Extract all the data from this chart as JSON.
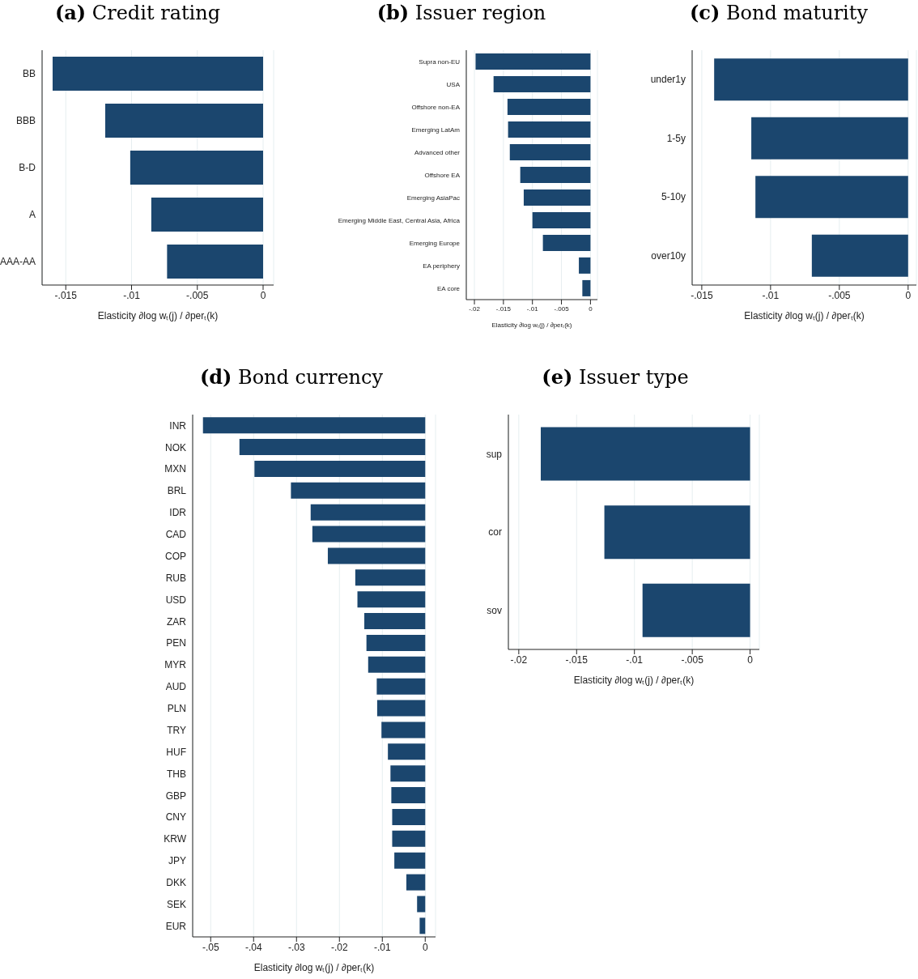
{
  "chart_data": [
    {
      "type": "bar",
      "orientation": "horizontal",
      "title": "(a) Credit rating",
      "xlabel": "Elasticity ∂log wₜ(j) / ∂perₜ(k)",
      "categories": [
        "BB",
        "BBB",
        "B-D",
        "A",
        "AAA-AA"
      ],
      "values": [
        -0.016,
        -0.012,
        -0.0101,
        -0.0085,
        -0.0073
      ],
      "color": "#1b466e",
      "xlim": [
        -0.0168,
        0.0008
      ],
      "xticks": [
        {
          "value": -0.015,
          "label": "-.015"
        },
        {
          "value": -0.01,
          "label": "-.01"
        },
        {
          "value": -0.005,
          "label": "-.005"
        },
        {
          "value": 0,
          "label": "0"
        }
      ],
      "grid": "x"
    },
    {
      "type": "bar",
      "orientation": "horizontal",
      "title": "(b) Issuer region",
      "xlabel": "Elasticity ∂log wₜ(j) / ∂perₜ(k)",
      "categories": [
        "Supra non-EU",
        "USA",
        "Offshore non-EA",
        "Emerging LatAm",
        "Advanced other",
        "Offshore EA",
        "Emerging AsiaPac",
        "Emerging Middle East, Central Asia, Africa",
        "Emerging Europe",
        "EA periphery",
        "EA core"
      ],
      "values": [
        -0.0198,
        -0.0167,
        -0.0143,
        -0.0142,
        -0.0139,
        -0.0121,
        -0.0115,
        -0.01,
        -0.0082,
        -0.002,
        -0.0014
      ],
      "color": "#1b466e",
      "xlim": [
        -0.0214,
        0.0012
      ],
      "xticks": [
        {
          "value": -0.02,
          "label": "-.02"
        },
        {
          "value": -0.015,
          "label": "-.015"
        },
        {
          "value": -0.01,
          "label": "-.01"
        },
        {
          "value": -0.005,
          "label": "-.005"
        },
        {
          "value": 0,
          "label": "0"
        }
      ],
      "grid": "x"
    },
    {
      "type": "bar",
      "orientation": "horizontal",
      "title": "(c) Bond maturity",
      "xlabel": "Elasticity ∂log wₜ(j) / ∂perₜ(k)",
      "categories": [
        "under1y",
        "1-5y",
        "5-10y",
        "over10y"
      ],
      "values": [
        -0.0141,
        -0.0114,
        -0.0111,
        -0.007
      ],
      "color": "#1b466e",
      "xlim": [
        -0.0157,
        0.0006
      ],
      "xticks": [
        {
          "value": -0.015,
          "label": "-.015"
        },
        {
          "value": -0.01,
          "label": "-.01"
        },
        {
          "value": -0.005,
          "label": "-.005"
        },
        {
          "value": 0,
          "label": "0"
        }
      ],
      "grid": "x"
    },
    {
      "type": "bar",
      "orientation": "horizontal",
      "title": "(d) Bond currency",
      "xlabel": "Elasticity ∂log wₜ(j) / ∂perₜ(k)",
      "categories": [
        "INR",
        "NOK",
        "MXN",
        "BRL",
        "IDR",
        "CAD",
        "COP",
        "RUB",
        "USD",
        "ZAR",
        "PEN",
        "MYR",
        "AUD",
        "PLN",
        "TRY",
        "HUF",
        "THB",
        "GBP",
        "CNY",
        "KRW",
        "JPY",
        "DKK",
        "SEK",
        "EUR"
      ],
      "values": [
        -0.0518,
        -0.0433,
        -0.0398,
        -0.0313,
        -0.0267,
        -0.0263,
        -0.0227,
        -0.0163,
        -0.0158,
        -0.0142,
        -0.0137,
        -0.0133,
        -0.0113,
        -0.0112,
        -0.0102,
        -0.0087,
        -0.0081,
        -0.0079,
        -0.0077,
        -0.0077,
        -0.0072,
        -0.0044,
        -0.0019,
        -0.0013
      ],
      "color": "#1b466e",
      "xlim": [
        -0.0542,
        0.0024
      ],
      "xticks": [
        {
          "value": -0.05,
          "label": "-.05"
        },
        {
          "value": -0.04,
          "label": "-.04"
        },
        {
          "value": -0.03,
          "label": "-.03"
        },
        {
          "value": -0.02,
          "label": "-.02"
        },
        {
          "value": -0.01,
          "label": "-.01"
        },
        {
          "value": 0,
          "label": "0"
        }
      ],
      "grid": "x"
    },
    {
      "type": "bar",
      "orientation": "horizontal",
      "title": "(e) Issuer type",
      "xlabel": "Elasticity ∂log wₜ(j) / ∂perₜ(k)",
      "categories": [
        "sup",
        "cor",
        "sov"
      ],
      "values": [
        -0.0181,
        -0.0126,
        -0.0093
      ],
      "color": "#1b466e",
      "xlim": [
        -0.0209,
        0.0008
      ],
      "xticks": [
        {
          "value": -0.02,
          "label": "-.02"
        },
        {
          "value": -0.015,
          "label": "-.015"
        },
        {
          "value": -0.01,
          "label": "-.01"
        },
        {
          "value": -0.005,
          "label": "-.005"
        },
        {
          "value": 0,
          "label": "0"
        }
      ],
      "grid": "x"
    }
  ]
}
